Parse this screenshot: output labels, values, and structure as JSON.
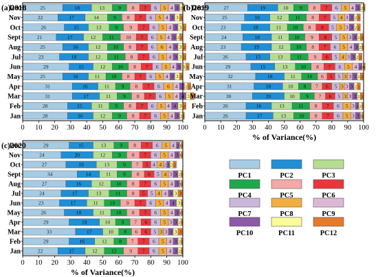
{
  "chart_data": [
    {
      "type": "bar",
      "orientation": "horizontal",
      "stacked": true,
      "title": "(a)2018",
      "xlabel": "",
      "xlim": [
        0,
        100
      ],
      "xticks": [
        "0",
        "10",
        "20",
        "30",
        "40",
        "50",
        "60",
        "70",
        "80",
        "90",
        "100"
      ],
      "categories": [
        "Jan",
        "Feb",
        "Mar",
        "Apr",
        "May",
        "Jun",
        "Jul",
        "Aug",
        "Sept",
        "Oct",
        "Nov",
        "Dec"
      ],
      "values": [
        [
          28,
          16,
          12,
          9,
          8,
          7,
          6,
          5,
          4,
          3,
          2,
          1
        ],
        [
          28,
          15,
          11,
          9,
          8,
          7,
          6,
          5,
          4,
          4,
          3,
          2
        ],
        [
          31,
          17,
          11,
          9,
          8,
          7,
          6,
          5,
          4,
          4,
          3,
          2
        ],
        [
          31,
          16,
          11,
          9,
          8,
          7,
          6,
          6,
          4,
          3,
          2,
          2
        ],
        [
          25,
          16,
          11,
          10,
          8,
          7,
          6,
          5,
          4,
          3,
          3,
          2
        ],
        [
          29,
          15,
          12,
          10,
          8,
          7,
          6,
          5,
          4,
          3,
          3,
          2
        ],
        [
          23,
          18,
          12,
          11,
          8,
          7,
          6,
          5,
          4,
          3,
          3,
          2
        ],
        [
          25,
          16,
          12,
          10,
          8,
          7,
          6,
          6,
          4,
          3,
          3,
          2
        ],
        [
          21,
          17,
          12,
          11,
          10,
          7,
          6,
          5,
          4,
          3,
          2,
          2
        ],
        [
          26,
          15,
          13,
          9,
          9,
          7,
          6,
          5,
          4,
          3,
          3,
          2
        ],
        [
          22,
          17,
          14,
          9,
          8,
          7,
          6,
          5,
          4,
          3,
          3,
          2
        ],
        [
          25,
          18,
          13,
          9,
          8,
          7,
          6,
          5,
          4,
          3,
          2,
          1
        ]
      ]
    },
    {
      "type": "bar",
      "orientation": "horizontal",
      "stacked": true,
      "title": "(b)2019",
      "xlabel": "% of Variance(%)",
      "xlim": [
        0,
        100
      ],
      "xticks": [
        "0",
        "10",
        "20",
        "30",
        "40",
        "50",
        "60",
        "70",
        "80",
        "90",
        "100"
      ],
      "categories": [
        "Jan",
        "Feb",
        "Mar",
        "Apr",
        "May",
        "Jun",
        "Jul",
        "Aug",
        "Sept",
        "Oct",
        "Nov",
        "Dec"
      ],
      "values": [
        [
          26,
          17,
          13,
          10,
          8,
          7,
          6,
          5,
          3,
          3,
          1,
          1
        ],
        [
          26,
          16,
          13,
          11,
          8,
          7,
          6,
          5,
          3,
          2,
          2,
          1
        ],
        [
          30,
          20,
          10,
          9,
          7,
          6,
          5,
          3,
          3,
          3,
          2,
          2
        ],
        [
          31,
          18,
          10,
          8,
          7,
          6,
          5,
          3,
          3,
          3,
          2,
          2
        ],
        [
          32,
          18,
          11,
          10,
          6,
          5,
          5,
          3,
          3,
          3,
          2,
          2
        ],
        [
          29,
          15,
          13,
          10,
          8,
          7,
          6,
          5,
          4,
          2,
          1,
          1
        ],
        [
          26,
          15,
          13,
          11,
          9,
          6,
          5,
          4,
          3,
          3,
          2,
          2
        ],
        [
          23,
          19,
          12,
          10,
          8,
          7,
          6,
          5,
          4,
          3,
          2,
          1
        ],
        [
          24,
          18,
          11,
          10,
          9,
          8,
          5,
          5,
          3,
          3,
          2,
          2
        ],
        [
          23,
          18,
          11,
          10,
          8,
          8,
          5,
          5,
          3,
          3,
          2,
          2
        ],
        [
          25,
          16,
          12,
          11,
          8,
          7,
          5,
          4,
          3,
          3,
          2,
          2
        ],
        [
          27,
          19,
          10,
          9,
          8,
          7,
          6,
          5,
          4,
          3,
          2,
          1
        ]
      ]
    },
    {
      "type": "bar",
      "orientation": "horizontal",
      "stacked": true,
      "title": "(c)2020",
      "xlabel": "% of Variance(%)",
      "xlim": [
        0,
        100
      ],
      "xticks": [
        "0",
        "10",
        "20",
        "30",
        "40",
        "50",
        "60",
        "70",
        "80",
        "90",
        "100"
      ],
      "categories": [
        "Jan",
        "Feb",
        "Mar",
        "Apr",
        "May",
        "Jun",
        "Jul",
        "Aug",
        "Sept",
        "Oct",
        "Nov",
        "Dec"
      ],
      "values": [
        [
          22,
          17,
          12,
          12,
          9,
          7,
          6,
          5,
          4,
          3,
          2,
          1
        ],
        [
          29,
          16,
          12,
          8,
          7,
          7,
          6,
          5,
          4,
          3,
          2,
          1
        ],
        [
          33,
          17,
          10,
          8,
          6,
          6,
          5,
          3,
          3,
          3,
          3,
          3
        ],
        [
          29,
          19,
          10,
          9,
          7,
          6,
          6,
          5,
          3,
          3,
          2,
          1
        ],
        [
          26,
          18,
          11,
          10,
          8,
          7,
          6,
          5,
          4,
          3,
          1,
          1
        ],
        [
          23,
          17,
          11,
          10,
          9,
          7,
          6,
          5,
          4,
          4,
          3,
          1
        ],
        [
          24,
          17,
          13,
          11,
          8,
          5,
          5,
          4,
          4,
          3,
          3,
          3
        ],
        [
          27,
          16,
          12,
          10,
          8,
          7,
          6,
          5,
          4,
          3,
          1,
          1
        ],
        [
          34,
          14,
          11,
          9,
          8,
          6,
          5,
          4,
          3,
          3,
          2,
          1
        ],
        [
          27,
          19,
          13,
          9,
          7,
          5,
          4,
          4,
          2,
          2,
          2,
          2
        ],
        [
          24,
          20,
          12,
          9,
          8,
          7,
          6,
          5,
          4,
          3,
          1,
          1
        ],
        [
          29,
          15,
          13,
          9,
          8,
          7,
          6,
          5,
          4,
          2,
          1,
          1
        ]
      ]
    }
  ],
  "legend": {
    "items": [
      "PC1",
      "PC2",
      "PC3",
      "PC4",
      "PC5",
      "PC6",
      "PC7",
      "PC8",
      "PC9",
      "PC10",
      "PC11",
      "PC12"
    ],
    "colors": [
      "#a6cbe2",
      "#1f8fd6",
      "#b6dd93",
      "#1ea84b",
      "#f4a9a6",
      "#e8373c",
      "#cbb7db",
      "#f3ae3f",
      "#ddb8d6",
      "#8c5aa8",
      "#fbfb9a",
      "#e7792c"
    ]
  }
}
